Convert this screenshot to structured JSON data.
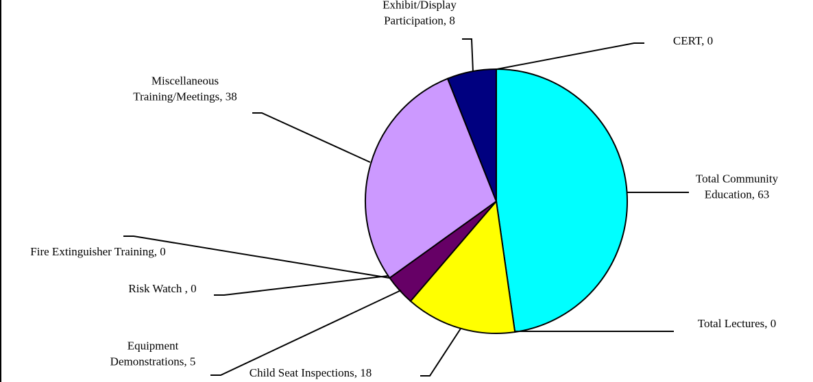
{
  "chart_data": {
    "type": "pie",
    "title": "",
    "slices": [
      {
        "label": "Total Community Education",
        "value": 63,
        "display": "Total Community\nEducation, 63",
        "color": "#00FFFF"
      },
      {
        "label": "Total Lectures",
        "value": 0,
        "display": "Total Lectures, 0",
        "color": "#00FFFF"
      },
      {
        "label": "Child Seat Inspections",
        "value": 18,
        "display": "Child Seat Inspections, 18",
        "color": "#FFFF00"
      },
      {
        "label": "Equipment Demonstrations",
        "value": 5,
        "display": "Equipment\nDemonstrations, 5",
        "color": "#660066"
      },
      {
        "label": "Risk Watch",
        "value": 0,
        "display": "Risk Watch , 0",
        "color": "#660066"
      },
      {
        "label": "Fire Extinguisher Training",
        "value": 0,
        "display": "Fire Extinguisher Training, 0",
        "color": "#660066"
      },
      {
        "label": "Miscellaneous Training/Meetings",
        "value": 38,
        "display": "Miscellaneous\nTraining/Meetings, 38",
        "color": "#CC99FF"
      },
      {
        "label": "Exhibit/Display Participation",
        "value": 8,
        "display": "Exhibit/Display\nParticipation, 8",
        "color": "#000080"
      },
      {
        "label": "CERT",
        "value": 0,
        "display": "CERT, 0",
        "color": "#000080"
      }
    ],
    "start_angle": "12 o'clock",
    "direction": "clockwise",
    "legend": "none"
  }
}
